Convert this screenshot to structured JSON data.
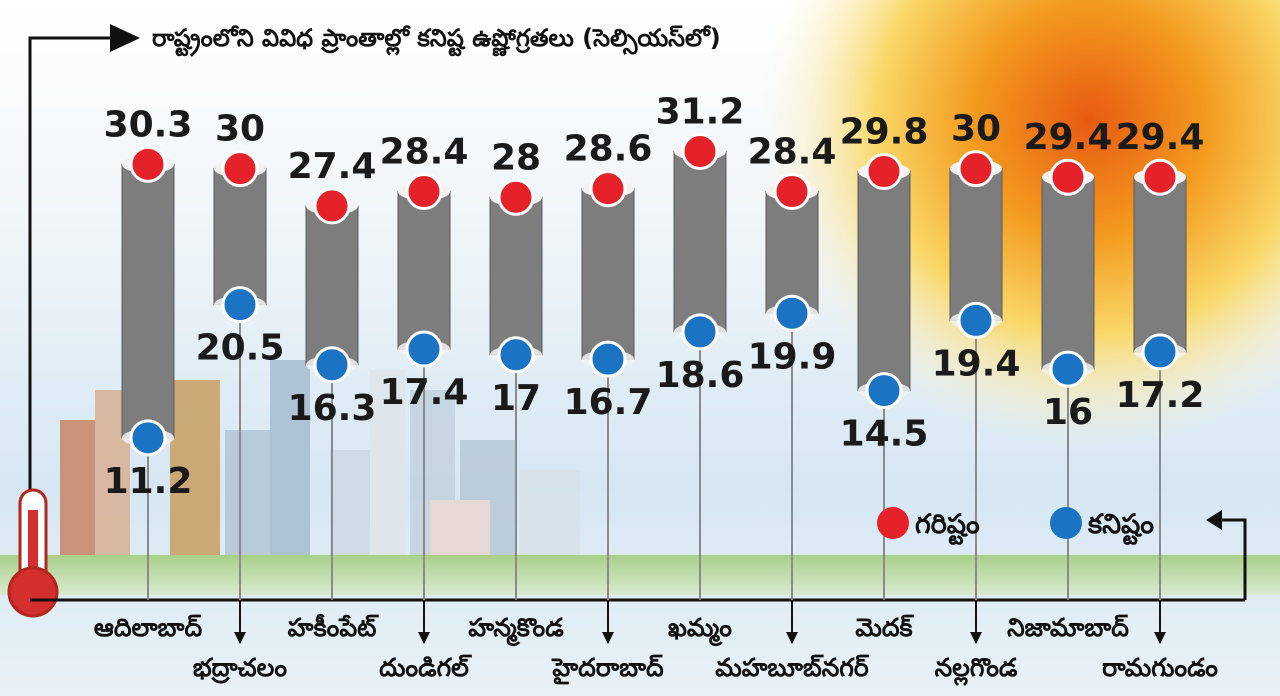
{
  "chart_data": {
    "type": "range-bar",
    "title": "రాష్ట్రంలోని వివిధ ప్రాంతాల్లో కనిష్ట ఉష్ణోగ్రతలు (సెల్సియస్‌లో)",
    "categories": [
      "ఆదిలాబాద్",
      "భద్రాచలం",
      "హకీంపేట్",
      "దుండిగల్",
      "హన్మకొండ",
      "హైదరాబాద్",
      "ఖమ్మం",
      "మహబూబ్‌నగర్",
      "మెదక్",
      "నల్లగొండ",
      "నిజామాబాద్",
      "రామగుండం"
    ],
    "series": [
      {
        "name": "గరిష్టం",
        "values": [
          30.3,
          30,
          27.4,
          28.4,
          28,
          28.6,
          31.2,
          28.4,
          29.8,
          30,
          29.4,
          29.4
        ],
        "color": "#e52229"
      },
      {
        "name": "కనిష్టం",
        "values": [
          11.2,
          20.5,
          16.3,
          17.4,
          17,
          16.7,
          18.6,
          19.9,
          14.5,
          19.4,
          16,
          17.2
        ],
        "color": "#1b73c4"
      }
    ],
    "value_labels": {
      "max": [
        "30.3",
        "30",
        "27.4",
        "28.4",
        "28",
        "28.6",
        "31.2",
        "28.4",
        "29.8",
        "30",
        "29.4",
        "29.4"
      ],
      "min": [
        "11.2",
        "20.5",
        "16.3",
        "17.4",
        "17",
        "16.7",
        "18.6",
        "19.9",
        "14.5",
        "19.4",
        "16",
        "17.2"
      ]
    },
    "ylim": [
      10,
      32
    ],
    "legend": "bottom-right",
    "grid": false
  }
}
